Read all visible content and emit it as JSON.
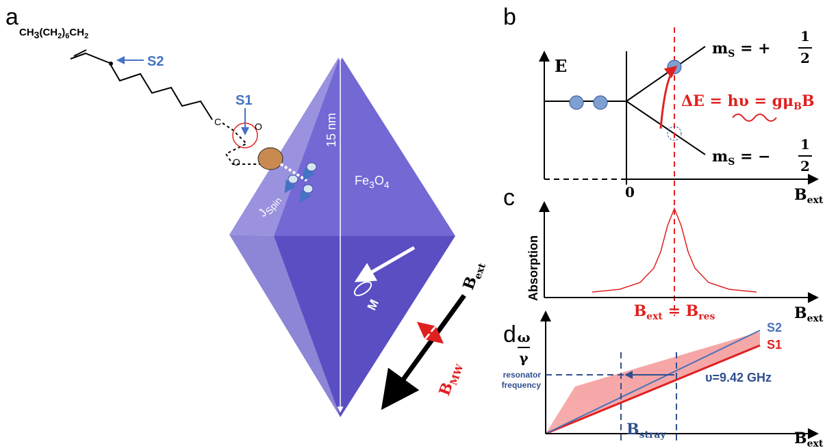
{
  "panel_a": {
    "label": "a",
    "molecule": {
      "chain": [
        "CH",
        "3",
        "(CH",
        "2",
        ")",
        "6",
        "CH",
        "2"
      ],
      "carbon": "C",
      "oxygen_top": "O",
      "oxygen_bottom": "O"
    },
    "s1": "S1",
    "s2": "S2",
    "size": "15 nm",
    "material": [
      "Fe",
      "3",
      "O",
      "4"
    ],
    "j_spin": [
      "J",
      "Spin"
    ],
    "magnetization": "M",
    "b_ext": [
      "B",
      "ext"
    ],
    "b_mw": [
      "B",
      "MW"
    ]
  },
  "panel_b": {
    "label": "b",
    "y_axis": "E",
    "origin": "0",
    "x_axis": [
      "B",
      "ext"
    ],
    "upper_level": [
      "m",
      "S",
      " = +",
      "1",
      "2"
    ],
    "lower_level": [
      "m",
      "S",
      " = −",
      "1",
      "2"
    ],
    "resonance": [
      "ΔE = hυ = gμ",
      "B",
      "B"
    ]
  },
  "panel_c": {
    "label": "c",
    "y_axis": "Absorption",
    "x_axis": [
      "B",
      "ext"
    ],
    "condition": [
      "B",
      "ext",
      " = B",
      "res"
    ]
  },
  "panel_d": {
    "label": "d",
    "y_axis": [
      "ω",
      "γ"
    ],
    "x_axis": [
      "B",
      "ext"
    ],
    "s2": "S2",
    "s1": "S1",
    "resonator": [
      "resonator",
      "frequency"
    ],
    "frequency": "υ=9.42 GHz",
    "stray": [
      "B",
      "stray"
    ]
  }
}
